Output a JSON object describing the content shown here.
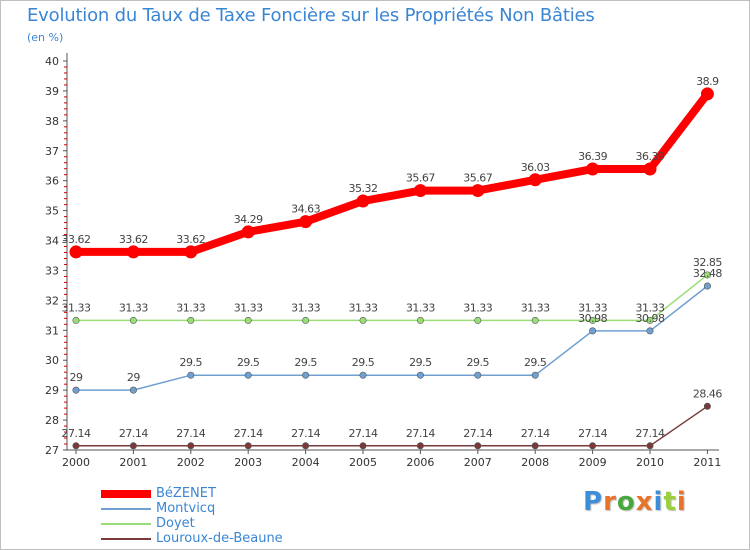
{
  "title": "Evolution du Taux de Taxe Foncière sur les Propriétés Non Bâties",
  "unit": "(en %)",
  "brand": {
    "letters": [
      {
        "ch": "P",
        "color": "#3a8fd8"
      },
      {
        "ch": "r",
        "color": "#e8732a"
      },
      {
        "ch": "o",
        "color": "#4aa63e"
      },
      {
        "ch": "x",
        "color": "#e8732a"
      },
      {
        "ch": "i",
        "color": "#3a8fd8"
      },
      {
        "ch": "t",
        "color": "#9ccf3c"
      },
      {
        "ch": "i",
        "color": "#e8732a"
      }
    ]
  },
  "chart_data": {
    "type": "line",
    "x": [
      "2000",
      "2001",
      "2002",
      "2003",
      "2004",
      "2005",
      "2006",
      "2007",
      "2008",
      "2009",
      "2010",
      "2011"
    ],
    "ylim": [
      27,
      40
    ],
    "yticks": [
      "27",
      "28",
      "29",
      "30",
      "31",
      "32",
      "33",
      "34",
      "35",
      "36",
      "37",
      "38",
      "39",
      "40"
    ],
    "grid": false,
    "legend_position": "bottom-left",
    "series": [
      {
        "name": "BéZENET",
        "color": "#ff0000",
        "values": [
          33.62,
          33.62,
          33.62,
          34.29,
          34.63,
          35.32,
          35.67,
          35.67,
          36.03,
          36.39,
          36.39,
          38.9
        ],
        "labels": [
          "33.62",
          "33.62",
          "33.62",
          "34.29",
          "34.63",
          "35.32",
          "35.67",
          "35.67",
          "36.03",
          "36.39",
          "36.39",
          "38.9"
        ]
      },
      {
        "name": "Montvicq",
        "color": "#6fa0d0",
        "values": [
          29,
          29,
          29.5,
          29.5,
          29.5,
          29.5,
          29.5,
          29.5,
          29.5,
          30.98,
          30.98,
          32.48
        ],
        "labels": [
          "29",
          "29",
          "29.5",
          "29.5",
          "29.5",
          "29.5",
          "29.5",
          "29.5",
          "29.5",
          "30.98",
          "30.98",
          "32.48"
        ]
      },
      {
        "name": "Doyet",
        "color": "#99dd77",
        "values": [
          31.33,
          31.33,
          31.33,
          31.33,
          31.33,
          31.33,
          31.33,
          31.33,
          31.33,
          31.33,
          31.33,
          32.85
        ],
        "labels": [
          "31.33",
          "31.33",
          "31.33",
          "31.33",
          "31.33",
          "31.33",
          "31.33",
          "31.33",
          "31.33",
          "31.33",
          "31.33",
          "32.85"
        ]
      },
      {
        "name": "Louroux-de-Beaune",
        "color": "#7a3a3a",
        "values": [
          27.14,
          27.14,
          27.14,
          27.14,
          27.14,
          27.14,
          27.14,
          27.14,
          27.14,
          27.14,
          27.14,
          28.46
        ],
        "labels": [
          "27.14",
          "27.14",
          "27.14",
          "27.14",
          "27.14",
          "27.14",
          "27.14",
          "27.14",
          "27.14",
          "27.14",
          "27.14",
          "28.46"
        ]
      }
    ]
  }
}
